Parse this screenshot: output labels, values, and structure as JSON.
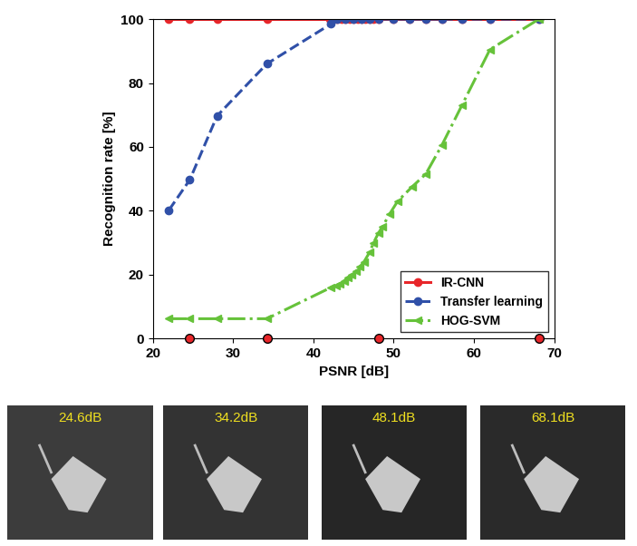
{
  "chart_data": {
    "type": "line",
    "xlabel": "PSNR [dB]",
    "ylabel": "Recognition rate [%]",
    "xlim": [
      20,
      70
    ],
    "xticks": [
      20,
      30,
      40,
      50,
      60,
      70
    ],
    "ylim": [
      0,
      100
    ],
    "yticks": [
      0,
      20,
      40,
      60,
      80,
      100
    ],
    "legend": "lower right",
    "series": [
      {
        "name": "IR-CNN",
        "color": "#e8262a",
        "marker": "o",
        "line_style": "solid",
        "x": [
          22,
          24.6,
          28,
          34.2,
          42,
          42.5,
          43,
          43.5,
          44,
          44.5,
          45,
          45.5,
          46,
          46.5,
          47,
          47.5,
          48.1,
          50,
          52,
          54,
          56,
          58.5,
          62,
          68.1
        ],
        "values": [
          100,
          100,
          100,
          100,
          100,
          100,
          100,
          100,
          100,
          100,
          100,
          100,
          100,
          100,
          100,
          100,
          100,
          100,
          100,
          100,
          100,
          100,
          100,
          100
        ]
      },
      {
        "name": "Transfer learning",
        "color": "#3050a8",
        "marker": "o",
        "line_style": "dashed",
        "x": [
          22,
          24.6,
          28,
          34.2,
          42.2,
          43,
          44,
          45,
          46,
          47,
          48.1,
          50,
          52,
          54,
          56,
          58.5,
          62,
          68.1
        ],
        "values": [
          40.2,
          49.7,
          69.7,
          86,
          98.5,
          100,
          100,
          100,
          100,
          100,
          100,
          100,
          100,
          100,
          100,
          100,
          100,
          100
        ]
      },
      {
        "name": "HOG-SVM",
        "color": "#66c23a",
        "marker": "<",
        "line_style": "dashdot",
        "x": [
          22,
          24.6,
          28,
          34.2,
          42.2,
          42.8,
          43.3,
          43.8,
          44.3,
          44.8,
          45.3,
          45.8,
          46.3,
          47,
          47.5,
          48.1,
          48.6,
          49.5,
          50.5,
          52.3,
          54,
          56,
          58.5,
          62,
          68.1
        ],
        "values": [
          6.2,
          6.2,
          6.2,
          6.2,
          16,
          16.5,
          17,
          18,
          19,
          20,
          21,
          22.5,
          24,
          27,
          30,
          33,
          35,
          39,
          43,
          47.5,
          51.5,
          60.5,
          73,
          90.5,
          100
        ]
      }
    ]
  },
  "thumbnails": [
    {
      "label": "24.6dB",
      "psnr": 24.6
    },
    {
      "label": "34.2dB",
      "psnr": 34.2
    },
    {
      "label": "48.1dB",
      "psnr": 48.1
    },
    {
      "label": "68.1dB",
      "psnr": 68.1
    }
  ]
}
